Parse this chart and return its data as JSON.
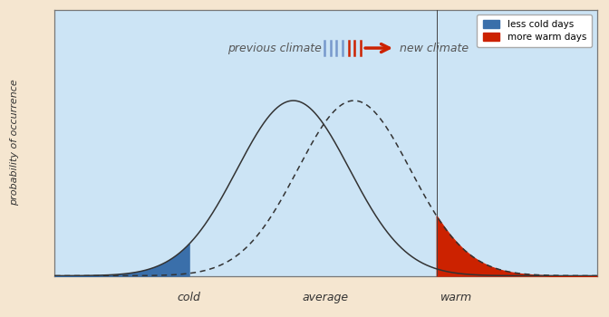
{
  "bg_outer": "#f5e6d0",
  "bg_inner": "#cce4f5",
  "curve1_mean": 0.0,
  "curve2_mean": 1.4,
  "sigma": 1.3,
  "cold_threshold": -2.4,
  "warm_threshold": 3.3,
  "x_min": -5.5,
  "x_max": 7.0,
  "cold_label": "cold",
  "average_label": "average",
  "warm_label": "warm",
  "ylabel": "probability of occurrence",
  "prev_label": "previous climate",
  "new_label": "new climate",
  "legend_cold": "less cold days",
  "legend_warm": "more warm days",
  "cold_fill_color": "#3a6faa",
  "warm_fill_color": "#cc2200",
  "curve_color": "#333333",
  "arrow_solid_color": "#cc2200",
  "dashes_color": "#7799cc",
  "border_color": "#c8a870"
}
